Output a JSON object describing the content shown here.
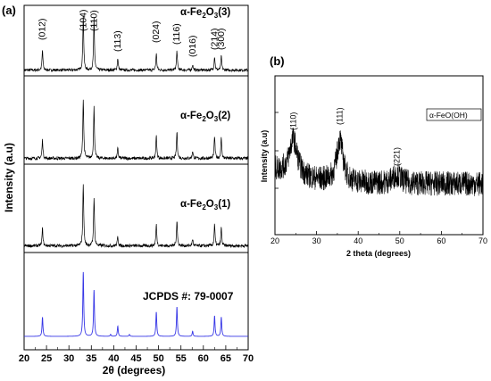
{
  "chart_data": [
    {
      "panel": "a",
      "panel_label": "(a)",
      "type": "line",
      "xlabel": "2θ (degrees)",
      "ylabel": "Intensity (a.u)",
      "xlim": [
        20,
        70
      ],
      "xticks": [
        "20",
        "25",
        "30",
        "35",
        "40",
        "45",
        "50",
        "55",
        "60",
        "65",
        "70"
      ],
      "grid": false,
      "series": [
        {
          "name": "α-Fe2O3(3)",
          "label_main": "α-Fe",
          "label_sub1": "2",
          "label_mid": "O",
          "label_sub2": "3",
          "label_end": "(3)",
          "color": "#000000",
          "peaks": [
            [
              24.1,
              0.36
            ],
            [
              33.2,
              1.0
            ],
            [
              35.6,
              0.92
            ],
            [
              40.9,
              0.22
            ],
            [
              49.5,
              0.3
            ],
            [
              54.1,
              0.35
            ],
            [
              57.6,
              0.1
            ],
            [
              62.5,
              0.25
            ],
            [
              64.0,
              0.25
            ]
          ],
          "noise": 0.05
        },
        {
          "name": "α-Fe2O3(2)",
          "label_main": "α-Fe",
          "label_sub1": "2",
          "label_mid": "O",
          "label_sub2": "3",
          "label_end": "(2)",
          "color": "#000000",
          "peaks": [
            [
              24.1,
              0.3
            ],
            [
              33.2,
              0.96
            ],
            [
              35.6,
              0.82
            ],
            [
              40.9,
              0.16
            ],
            [
              49.5,
              0.36
            ],
            [
              54.1,
              0.43
            ],
            [
              57.6,
              0.12
            ],
            [
              62.5,
              0.36
            ],
            [
              64.0,
              0.33
            ]
          ],
          "noise": 0.05
        },
        {
          "name": "α-Fe2O3(1)",
          "label_main": "α-Fe",
          "label_sub1": "2",
          "label_mid": "O",
          "label_sub2": "3",
          "label_end": "(1)",
          "color": "#000000",
          "peaks": [
            [
              24.1,
              0.28
            ],
            [
              33.2,
              1.0
            ],
            [
              35.6,
              0.78
            ],
            [
              40.9,
              0.15
            ],
            [
              49.5,
              0.34
            ],
            [
              54.1,
              0.41
            ],
            [
              57.6,
              0.11
            ],
            [
              62.5,
              0.34
            ],
            [
              64.0,
              0.29
            ]
          ],
          "noise": 0.05
        },
        {
          "name": "JCPDS #: 79-0007",
          "color": "#3535e6",
          "peaks": [
            [
              24.1,
              0.3
            ],
            [
              33.2,
              1.0
            ],
            [
              35.6,
              0.72
            ],
            [
              39.3,
              0.03
            ],
            [
              40.9,
              0.16
            ],
            [
              43.5,
              0.03
            ],
            [
              49.5,
              0.38
            ],
            [
              54.1,
              0.46
            ],
            [
              57.6,
              0.08
            ],
            [
              62.5,
              0.32
            ],
            [
              64.0,
              0.3
            ]
          ],
          "noise": 0.0
        }
      ],
      "peak_labels": [
        {
          "text": "(012)",
          "x": 24.1
        },
        {
          "text": "(104)",
          "x": 33.2
        },
        {
          "text": "(110)",
          "x": 35.6
        },
        {
          "text": "(113)",
          "x": 40.9
        },
        {
          "text": "(024)",
          "x": 49.5
        },
        {
          "text": "(116)",
          "x": 54.1
        },
        {
          "text": "(016)",
          "x": 57.6
        },
        {
          "text": "(214)",
          "x": 62.5
        },
        {
          "text": "(300)",
          "x": 64.0
        }
      ]
    },
    {
      "panel": "b",
      "panel_label": "(b)",
      "type": "line",
      "xlabel": "2 theta (degrees)",
      "ylabel": "Intensity (a.u)",
      "xlim": [
        20,
        70
      ],
      "xticks": [
        "20",
        "30",
        "40",
        "50",
        "60",
        "70"
      ],
      "grid": false,
      "legend": "top-right",
      "series": [
        {
          "name": "α-FeO(OH)",
          "color": "#000000",
          "peaks": [
            [
              24.4,
              0.42
            ],
            [
              35.6,
              0.48
            ],
            [
              49.3,
              0.1
            ]
          ],
          "widths": [
            1.2,
            0.9,
            1.2
          ],
          "noise": 0.14
        }
      ],
      "peak_labels": [
        {
          "text": "(110)",
          "x": 24.4
        },
        {
          "text": "(111)",
          "x": 35.6
        },
        {
          "text": "(221)",
          "x": 49.3
        }
      ]
    }
  ]
}
